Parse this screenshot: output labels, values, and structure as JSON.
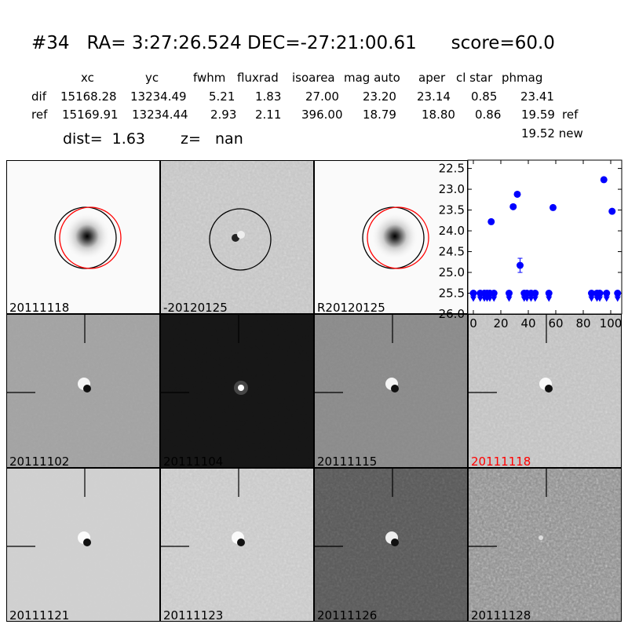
{
  "title": "#34   RA= 3:27:26.524 DEC=-27:21:00.61      score=60.0",
  "table": {
    "headers": [
      "xc",
      "yc",
      "fwhm",
      "fluxrad",
      "isoarea",
      "mag auto",
      "aper",
      "cl star",
      "phmag"
    ],
    "rows": [
      {
        "label": "dif",
        "values": [
          "15168.28",
          "13234.49",
          "5.21",
          "1.83",
          "27.00",
          "23.20",
          "23.14",
          "0.85",
          "23.41"
        ],
        "suffix": ""
      },
      {
        "label": "ref",
        "values": [
          "15169.91",
          "13234.44",
          "2.93",
          "2.11",
          "396.00",
          "18.79",
          "18.80",
          "0.86",
          "19.59"
        ],
        "suffix": "ref"
      }
    ],
    "extra": "19.52 new"
  },
  "dist": "dist=  1.63",
  "z": "z=   nan",
  "panels": [
    {
      "label": "20111118",
      "bg": "#fafafa",
      "noise": 0.05,
      "type": "star",
      "label_color": "#000"
    },
    {
      "label": "-20120125",
      "bg": "#c4c4c4",
      "noise": 0.5,
      "type": "diffcircle",
      "label_color": "#000"
    },
    {
      "label": "R20120125",
      "bg": "#fafafa",
      "noise": 0.05,
      "type": "star",
      "label_color": "#000"
    },
    {
      "label": "20111102",
      "bg": "#a2a2a2",
      "noise": 0.1,
      "type": "dipole",
      "label_color": "#000"
    },
    {
      "label": "20111104",
      "bg": "#161616",
      "noise": 0.05,
      "type": "bright",
      "label_color": "#000"
    },
    {
      "label": "20111115",
      "bg": "#8a8a8a",
      "noise": 0.1,
      "type": "dipole",
      "label_color": "#000"
    },
    {
      "label": "20111118",
      "bg": "#c0c0c0",
      "noise": 0.5,
      "type": "dipole",
      "label_color": "#ff0000"
    },
    {
      "label": "20111121",
      "bg": "#d0d0d0",
      "noise": 0.05,
      "type": "dipole",
      "label_color": "#000"
    },
    {
      "label": "20111123",
      "bg": "#c8c8c8",
      "noise": 0.5,
      "type": "dipole",
      "label_color": "#000"
    },
    {
      "label": "20111126",
      "bg": "#585858",
      "noise": 0.4,
      "type": "dipole",
      "label_color": "#000"
    },
    {
      "label": "20111128",
      "bg": "#8c8c8c",
      "noise": 0.7,
      "type": "faint",
      "label_color": "#000"
    }
  ],
  "chart_data": {
    "type": "scatter",
    "xlim": [
      -4,
      108
    ],
    "ylim": [
      26.0,
      22.3
    ],
    "y_inverted": true,
    "xticks": [
      "0",
      "20",
      "40",
      "60",
      "80",
      "100"
    ],
    "yticks": [
      "22.5",
      "23.0",
      "23.5",
      "24.0",
      "24.5",
      "25.0",
      "25.5",
      "26.0"
    ],
    "color": "#0000ff",
    "detections": [
      {
        "x": 13,
        "y": 23.78,
        "err": 0.03
      },
      {
        "x": 29,
        "y": 23.42,
        "err": 0.03
      },
      {
        "x": 32,
        "y": 23.12,
        "err": 0.03
      },
      {
        "x": 34,
        "y": 24.83,
        "err": 0.17
      },
      {
        "x": 58,
        "y": 23.44,
        "err": 0.03
      },
      {
        "x": 95,
        "y": 22.77,
        "err": 0.02
      },
      {
        "x": 101,
        "y": 23.53,
        "err": 0.03
      }
    ],
    "upper_limits": {
      "y": 25.5,
      "x": [
        0,
        5,
        8,
        10,
        12,
        15,
        26,
        37,
        39,
        42,
        45,
        55,
        86,
        90,
        92,
        97,
        105
      ]
    }
  }
}
